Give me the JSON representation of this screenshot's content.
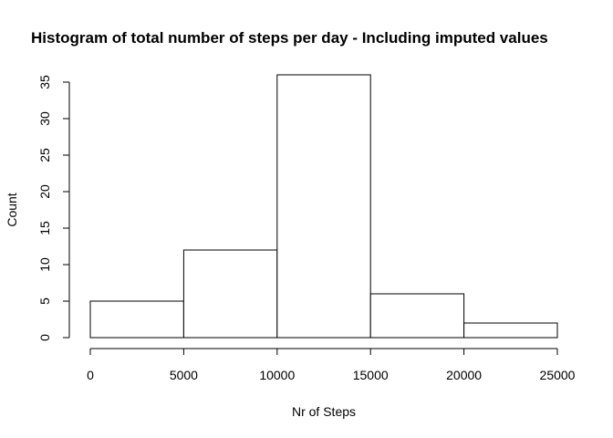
{
  "chart_data": {
    "type": "bar",
    "title": "Histogram of total number of steps per day - Including imputed values",
    "xlabel": "Nr of Steps",
    "ylabel": "Count",
    "bins": [
      [
        0,
        5000
      ],
      [
        5000,
        10000
      ],
      [
        10000,
        15000
      ],
      [
        15000,
        20000
      ],
      [
        20000,
        25000
      ]
    ],
    "values": [
      5,
      12,
      36,
      6,
      2
    ],
    "xlim": [
      0,
      25000
    ],
    "ylim": [
      0,
      35
    ],
    "x_ticks": [
      "0",
      "5000",
      "10000",
      "15000",
      "20000",
      "25000"
    ],
    "y_ticks": [
      "0",
      "5",
      "10",
      "15",
      "20",
      "25",
      "30",
      "35"
    ],
    "bar_fill": "#ffffff",
    "bar_stroke": "#000000",
    "grid": false
  }
}
